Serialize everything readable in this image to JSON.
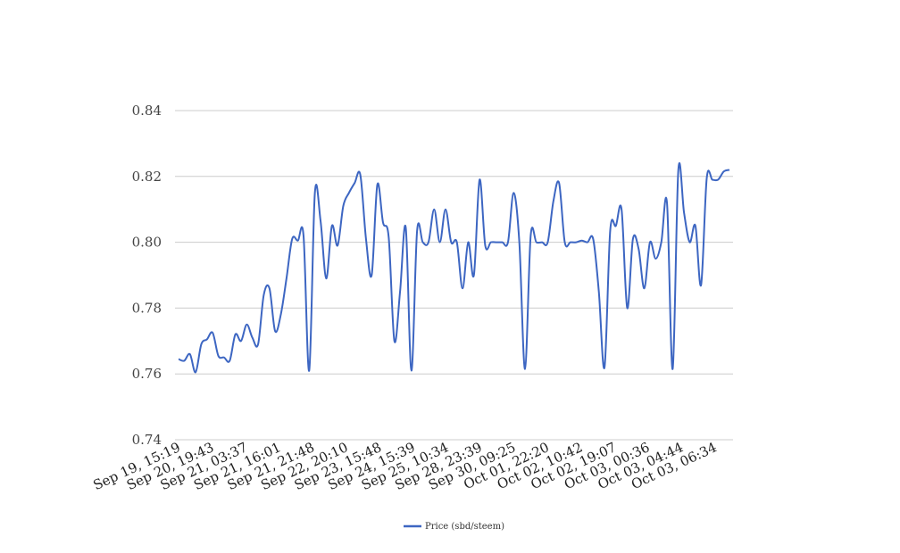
{
  "chart_data": {
    "type": "line",
    "title": "",
    "xlabel": "",
    "ylabel": "",
    "ylim": [
      0.74,
      0.84
    ],
    "yticks": [
      "0.74",
      "0.76",
      "0.78",
      "0.80",
      "0.82",
      "0.84"
    ],
    "grid": true,
    "legend_position": "bottom",
    "colors": {
      "series": "#3d66c2",
      "grid": "#cccccc",
      "text": "#444444"
    },
    "xtick_labels": [
      "Sep 19, 15:19",
      "Sep 20, 19:43",
      "Sep 21, 03:37",
      "Sep 21, 16:01",
      "Sep 21, 21:48",
      "Sep 22, 20:10",
      "Sep 23, 15:48",
      "Sep 24, 15:39",
      "Sep 25, 10:34",
      "Sep 28, 23:39",
      "Sep 30, 09:25",
      "Oct 01, 22:20",
      "Oct 02, 10:42",
      "Oct 02, 19:07",
      "Oct 03, 00:36",
      "Oct 03, 04:44",
      "Oct 03, 06:34"
    ],
    "series": [
      {
        "name": "Price (sbd/steem)",
        "values": [
          0.7645,
          0.764,
          0.766,
          0.7605,
          0.769,
          0.7705,
          0.7725,
          0.7655,
          0.765,
          0.764,
          0.772,
          0.77,
          0.775,
          0.771,
          0.769,
          0.784,
          0.786,
          0.773,
          0.778,
          0.789,
          0.801,
          0.8005,
          0.802,
          0.761,
          0.815,
          0.8065,
          0.789,
          0.805,
          0.799,
          0.811,
          0.815,
          0.818,
          0.8205,
          0.801,
          0.79,
          0.8175,
          0.806,
          0.8015,
          0.77,
          0.785,
          0.8045,
          0.761,
          0.8035,
          0.8,
          0.8,
          0.81,
          0.8,
          0.81,
          0.8,
          0.8,
          0.786,
          0.8,
          0.79,
          0.819,
          0.799,
          0.8,
          0.8,
          0.8,
          0.8,
          0.815,
          0.8,
          0.7615,
          0.802,
          0.8,
          0.8,
          0.8,
          0.8125,
          0.818,
          0.8,
          0.8,
          0.8,
          0.8005,
          0.8,
          0.801,
          0.785,
          0.762,
          0.8035,
          0.805,
          0.81,
          0.78,
          0.801,
          0.798,
          0.786,
          0.8,
          0.795,
          0.8,
          0.812,
          0.7615,
          0.822,
          0.809,
          0.8,
          0.805,
          0.787,
          0.8195,
          0.819,
          0.819,
          0.8215,
          0.822
        ]
      }
    ]
  }
}
